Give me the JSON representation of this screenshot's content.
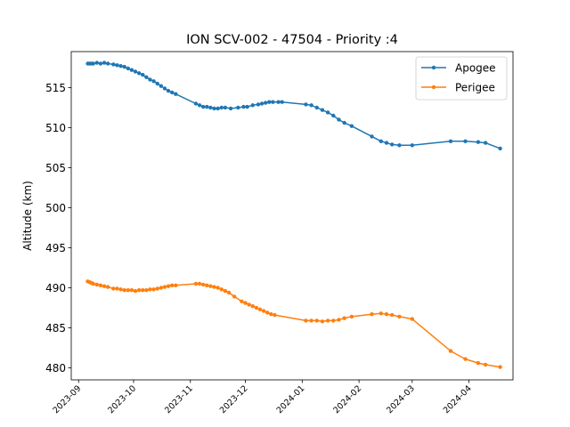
{
  "chart_data": {
    "type": "line",
    "title": "ION SCV-002 - 47504 - Priority :4",
    "xlabel": "",
    "ylabel": "Altitude (km)",
    "x_type": "date",
    "xlim": [
      "2023-08-28",
      "2024-04-25"
    ],
    "ylim": [
      478.5,
      519.5
    ],
    "yticks": [
      480,
      485,
      490,
      495,
      500,
      505,
      510,
      515
    ],
    "xticks": [
      "2023-09-01",
      "2023-10-01",
      "2023-11-01",
      "2023-12-01",
      "2024-01-01",
      "2024-02-01",
      "2024-03-01",
      "2024-04-01"
    ],
    "xtick_labels": [
      "2023-09",
      "2023-10",
      "2023-11",
      "2023-12",
      "2024-01",
      "2024-02",
      "2024-03",
      "2024-04"
    ],
    "legend": {
      "placement": "top-right"
    },
    "series": [
      {
        "name": "Apogee",
        "color": "#1f77b4",
        "points": [
          [
            "2023-09-06",
            518.0
          ],
          [
            "2023-09-07",
            518.0
          ],
          [
            "2023-09-08",
            518.0
          ],
          [
            "2023-09-09",
            518.0
          ],
          [
            "2023-09-11",
            518.1
          ],
          [
            "2023-09-13",
            518.0
          ],
          [
            "2023-09-15",
            518.1
          ],
          [
            "2023-09-17",
            518.0
          ],
          [
            "2023-09-20",
            517.9
          ],
          [
            "2023-09-22",
            517.8
          ],
          [
            "2023-09-24",
            517.7
          ],
          [
            "2023-09-26",
            517.6
          ],
          [
            "2023-09-28",
            517.4
          ],
          [
            "2023-09-30",
            517.2
          ],
          [
            "2023-10-02",
            517.0
          ],
          [
            "2023-10-04",
            516.8
          ],
          [
            "2023-10-06",
            516.6
          ],
          [
            "2023-10-08",
            516.3
          ],
          [
            "2023-10-10",
            516.0
          ],
          [
            "2023-10-12",
            515.8
          ],
          [
            "2023-10-14",
            515.5
          ],
          [
            "2023-10-16",
            515.2
          ],
          [
            "2023-10-18",
            514.9
          ],
          [
            "2023-10-20",
            514.6
          ],
          [
            "2023-10-22",
            514.4
          ],
          [
            "2023-10-24",
            514.2
          ],
          [
            "2023-11-04",
            513.0
          ],
          [
            "2023-11-06",
            512.8
          ],
          [
            "2023-11-08",
            512.6
          ],
          [
            "2023-11-10",
            512.6
          ],
          [
            "2023-11-12",
            512.5
          ],
          [
            "2023-11-14",
            512.4
          ],
          [
            "2023-11-16",
            512.4
          ],
          [
            "2023-11-18",
            512.5
          ],
          [
            "2023-11-20",
            512.5
          ],
          [
            "2023-11-23",
            512.4
          ],
          [
            "2023-11-27",
            512.5
          ],
          [
            "2023-11-30",
            512.6
          ],
          [
            "2023-12-02",
            512.6
          ],
          [
            "2023-12-05",
            512.8
          ],
          [
            "2023-12-08",
            512.9
          ],
          [
            "2023-12-10",
            513.0
          ],
          [
            "2023-12-12",
            513.1
          ],
          [
            "2023-12-14",
            513.2
          ],
          [
            "2023-12-16",
            513.2
          ],
          [
            "2023-12-19",
            513.2
          ],
          [
            "2023-12-21",
            513.2
          ],
          [
            "2024-01-03",
            512.9
          ],
          [
            "2024-01-06",
            512.8
          ],
          [
            "2024-01-09",
            512.5
          ],
          [
            "2024-01-12",
            512.2
          ],
          [
            "2024-01-15",
            511.9
          ],
          [
            "2024-01-18",
            511.5
          ],
          [
            "2024-01-21",
            511.0
          ],
          [
            "2024-01-24",
            510.6
          ],
          [
            "2024-01-28",
            510.2
          ],
          [
            "2024-02-08",
            508.9
          ],
          [
            "2024-02-13",
            508.3
          ],
          [
            "2024-02-16",
            508.1
          ],
          [
            "2024-02-19",
            507.9
          ],
          [
            "2024-02-23",
            507.8
          ],
          [
            "2024-03-01",
            507.8
          ],
          [
            "2024-03-22",
            508.3
          ],
          [
            "2024-03-30",
            508.3
          ],
          [
            "2024-04-06",
            508.2
          ],
          [
            "2024-04-10",
            508.1
          ],
          [
            "2024-04-18",
            507.4
          ]
        ]
      },
      {
        "name": "Perigee",
        "color": "#ff7f0e",
        "points": [
          [
            "2023-09-06",
            490.8
          ],
          [
            "2023-09-07",
            490.7
          ],
          [
            "2023-09-08",
            490.6
          ],
          [
            "2023-09-09",
            490.5
          ],
          [
            "2023-09-11",
            490.4
          ],
          [
            "2023-09-13",
            490.3
          ],
          [
            "2023-09-15",
            490.2
          ],
          [
            "2023-09-17",
            490.1
          ],
          [
            "2023-09-20",
            489.9
          ],
          [
            "2023-09-22",
            489.9
          ],
          [
            "2023-09-24",
            489.8
          ],
          [
            "2023-09-26",
            489.7
          ],
          [
            "2023-09-28",
            489.7
          ],
          [
            "2023-09-30",
            489.7
          ],
          [
            "2023-10-02",
            489.6
          ],
          [
            "2023-10-04",
            489.7
          ],
          [
            "2023-10-06",
            489.7
          ],
          [
            "2023-10-08",
            489.7
          ],
          [
            "2023-10-10",
            489.8
          ],
          [
            "2023-10-12",
            489.8
          ],
          [
            "2023-10-14",
            489.9
          ],
          [
            "2023-10-16",
            490.0
          ],
          [
            "2023-10-18",
            490.1
          ],
          [
            "2023-10-20",
            490.2
          ],
          [
            "2023-10-22",
            490.3
          ],
          [
            "2023-10-24",
            490.3
          ],
          [
            "2023-11-04",
            490.5
          ],
          [
            "2023-11-06",
            490.5
          ],
          [
            "2023-11-08",
            490.4
          ],
          [
            "2023-11-10",
            490.3
          ],
          [
            "2023-11-12",
            490.2
          ],
          [
            "2023-11-14",
            490.1
          ],
          [
            "2023-11-16",
            490.0
          ],
          [
            "2023-11-18",
            489.8
          ],
          [
            "2023-11-20",
            489.6
          ],
          [
            "2023-11-22",
            489.4
          ],
          [
            "2023-11-25",
            488.9
          ],
          [
            "2023-11-29",
            488.3
          ],
          [
            "2023-12-01",
            488.1
          ],
          [
            "2023-12-03",
            487.9
          ],
          [
            "2023-12-05",
            487.7
          ],
          [
            "2023-12-07",
            487.5
          ],
          [
            "2023-12-09",
            487.3
          ],
          [
            "2023-12-11",
            487.1
          ],
          [
            "2023-12-13",
            486.9
          ],
          [
            "2023-12-15",
            486.7
          ],
          [
            "2023-12-17",
            486.6
          ],
          [
            "2024-01-03",
            485.9
          ],
          [
            "2024-01-06",
            485.9
          ],
          [
            "2024-01-09",
            485.9
          ],
          [
            "2024-01-12",
            485.8
          ],
          [
            "2024-01-15",
            485.9
          ],
          [
            "2024-01-18",
            485.9
          ],
          [
            "2024-01-21",
            486.0
          ],
          [
            "2024-01-24",
            486.2
          ],
          [
            "2024-01-28",
            486.4
          ],
          [
            "2024-02-08",
            486.7
          ],
          [
            "2024-02-13",
            486.8
          ],
          [
            "2024-02-16",
            486.7
          ],
          [
            "2024-02-19",
            486.6
          ],
          [
            "2024-02-23",
            486.4
          ],
          [
            "2024-03-01",
            486.1
          ],
          [
            "2024-03-22",
            482.1
          ],
          [
            "2024-03-30",
            481.1
          ],
          [
            "2024-04-06",
            480.6
          ],
          [
            "2024-04-10",
            480.4
          ],
          [
            "2024-04-18",
            480.1
          ]
        ]
      }
    ]
  }
}
